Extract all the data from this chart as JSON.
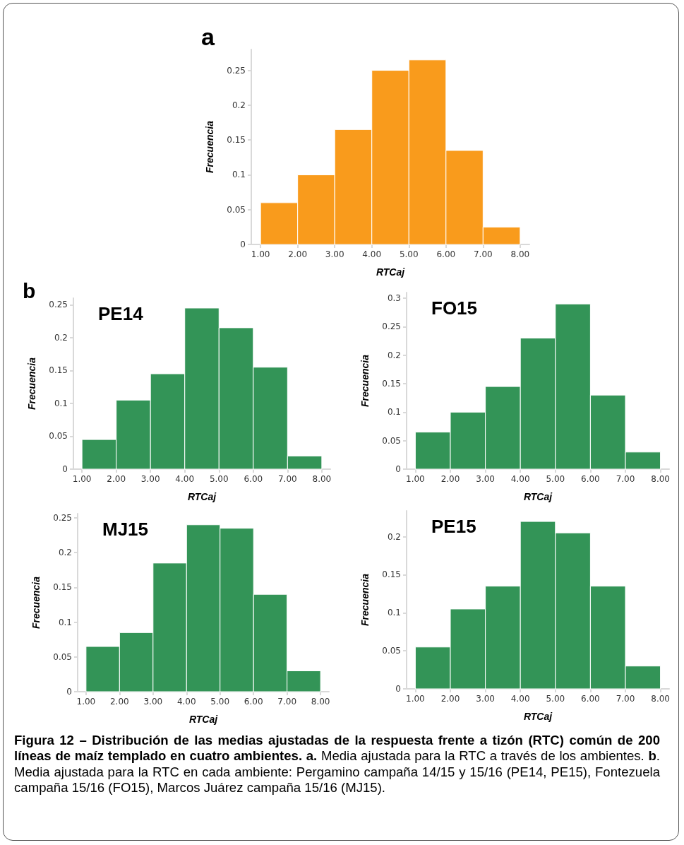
{
  "chart_data": [
    {
      "type": "histogram",
      "title": "a",
      "xlabel": "RTCaj",
      "ylabel": "Frecuencia",
      "color": "#f99b1c",
      "bins": [
        1,
        2,
        3,
        4,
        5,
        6,
        7,
        8
      ],
      "values": [
        0.06,
        0.1,
        0.165,
        0.25,
        0.265,
        0.135,
        0.025
      ],
      "xlim": [
        0.75,
        8.25
      ],
      "ylim": [
        0,
        0.28
      ],
      "xticks": [
        {
          "value": 1,
          "label": "1.00"
        },
        {
          "value": 2,
          "label": "2.00"
        },
        {
          "value": 3,
          "label": "3.00"
        },
        {
          "value": 4,
          "label": "4.00"
        },
        {
          "value": 5,
          "label": "5.00"
        },
        {
          "value": 6,
          "label": "6.00"
        },
        {
          "value": 7,
          "label": "7.00"
        },
        {
          "value": 8,
          "label": "8.00"
        }
      ],
      "yticks": [
        0,
        0.05,
        0.1,
        0.15,
        0.2,
        0.25
      ],
      "grid": false
    },
    {
      "type": "histogram",
      "title": "PE14",
      "annotations": [
        "b"
      ],
      "xlabel": "RTCaj",
      "ylabel": "Frecuencia",
      "color": "#339457",
      "bins": [
        1,
        2,
        3,
        4,
        5,
        6,
        7,
        8
      ],
      "values": [
        0.045,
        0.105,
        0.145,
        0.245,
        0.215,
        0.155,
        0.02
      ],
      "xlim": [
        0.75,
        8.25
      ],
      "ylim": [
        0,
        0.26
      ],
      "xticks": [
        {
          "value": 1,
          "label": "1.00"
        },
        {
          "value": 2,
          "label": "2.00"
        },
        {
          "value": 3,
          "label": "3.00"
        },
        {
          "value": 4,
          "label": "4.00"
        },
        {
          "value": 5,
          "label": "5.00"
        },
        {
          "value": 6,
          "label": "6.00"
        },
        {
          "value": 7,
          "label": "7.00"
        },
        {
          "value": 8,
          "label": "8.00"
        }
      ],
      "yticks": [
        0,
        0.05,
        0.1,
        0.15,
        0.2,
        0.25
      ],
      "grid": false
    },
    {
      "type": "histogram",
      "title": "FO15",
      "xlabel": "RTCaj",
      "ylabel": "Frecuencia",
      "color": "#339457",
      "bins": [
        1,
        2,
        3,
        4,
        5,
        6,
        7,
        8
      ],
      "values": [
        0.065,
        0.1,
        0.145,
        0.23,
        0.29,
        0.13,
        0.03
      ],
      "xlim": [
        0.75,
        8.25
      ],
      "ylim": [
        0,
        0.31
      ],
      "xticks": [
        {
          "value": 1,
          "label": "1.00"
        },
        {
          "value": 2,
          "label": "2.00"
        },
        {
          "value": 3,
          "label": "3.00"
        },
        {
          "value": 4,
          "label": "4.00"
        },
        {
          "value": 5,
          "label": "5.00"
        },
        {
          "value": 6,
          "label": "6.00"
        },
        {
          "value": 7,
          "label": "7.00"
        },
        {
          "value": 8,
          "label": "8.00"
        }
      ],
      "yticks": [
        0,
        0.05,
        0.1,
        0.15,
        0.2,
        0.25,
        0.3
      ],
      "grid": false
    },
    {
      "type": "histogram",
      "title": "MJ15",
      "xlabel": "RTCaj",
      "ylabel": "Frecuencia",
      "color": "#339457",
      "bins": [
        1,
        2,
        3,
        4,
        5,
        6,
        7,
        8
      ],
      "values": [
        0.065,
        0.085,
        0.185,
        0.24,
        0.235,
        0.14,
        0.03
      ],
      "xlim": [
        0.75,
        8.25
      ],
      "ylim": [
        0,
        0.256
      ],
      "xticks": [
        {
          "value": 1,
          "label": "1.00"
        },
        {
          "value": 2,
          "label": "2.00"
        },
        {
          "value": 3,
          "label": "3.00"
        },
        {
          "value": 4,
          "label": "4.00"
        },
        {
          "value": 5,
          "label": "5.00"
        },
        {
          "value": 6,
          "label": "6.00"
        },
        {
          "value": 7,
          "label": "7.00"
        },
        {
          "value": 8,
          "label": "8.00"
        }
      ],
      "yticks": [
        0,
        0.05,
        0.1,
        0.15,
        0.2,
        0.25
      ],
      "grid": false
    },
    {
      "type": "histogram",
      "title": "PE15",
      "annotations": [
        "Figura 12 – Distribución de las medias ajustadas de la respuesta frente a tizón (RTC) común de 200 líneas de maíz templado en cuatro ambientes. a.",
        " Media ajustada para la RTC a través de los ambientes. ",
        "b",
        ". Media ajustada para la RTC en cada ambiente: Pergamino campaña 14/15 y 15/16 (PE14, PE15), Fontezuela campaña 15/16 (FO15), Marcos Juárez campaña 15/16 (MJ15)."
      ],
      "xlabel": "RTCaj",
      "ylabel": "Frecuencia",
      "color": "#339457",
      "bins": [
        1,
        2,
        3,
        4,
        5,
        6,
        7,
        8
      ],
      "values": [
        0.055,
        0.105,
        0.135,
        0.22,
        0.205,
        0.135,
        0.03
      ],
      "xlim": [
        0.75,
        8.25
      ],
      "ylim": [
        0,
        0.234
      ],
      "xticks": [
        {
          "value": 1,
          "label": "1.00"
        },
        {
          "value": 2,
          "label": "2.00"
        },
        {
          "value": 3,
          "label": "3.00"
        },
        {
          "value": 4,
          "label": "4.00"
        },
        {
          "value": 5,
          "label": "5.00"
        },
        {
          "value": 6,
          "label": "6.00"
        },
        {
          "value": 7,
          "label": "7.00"
        },
        {
          "value": 8,
          "label": "8.00"
        }
      ],
      "yticks": [
        0,
        0.05,
        0.1,
        0.15,
        0.2
      ],
      "grid": false
    }
  ]
}
